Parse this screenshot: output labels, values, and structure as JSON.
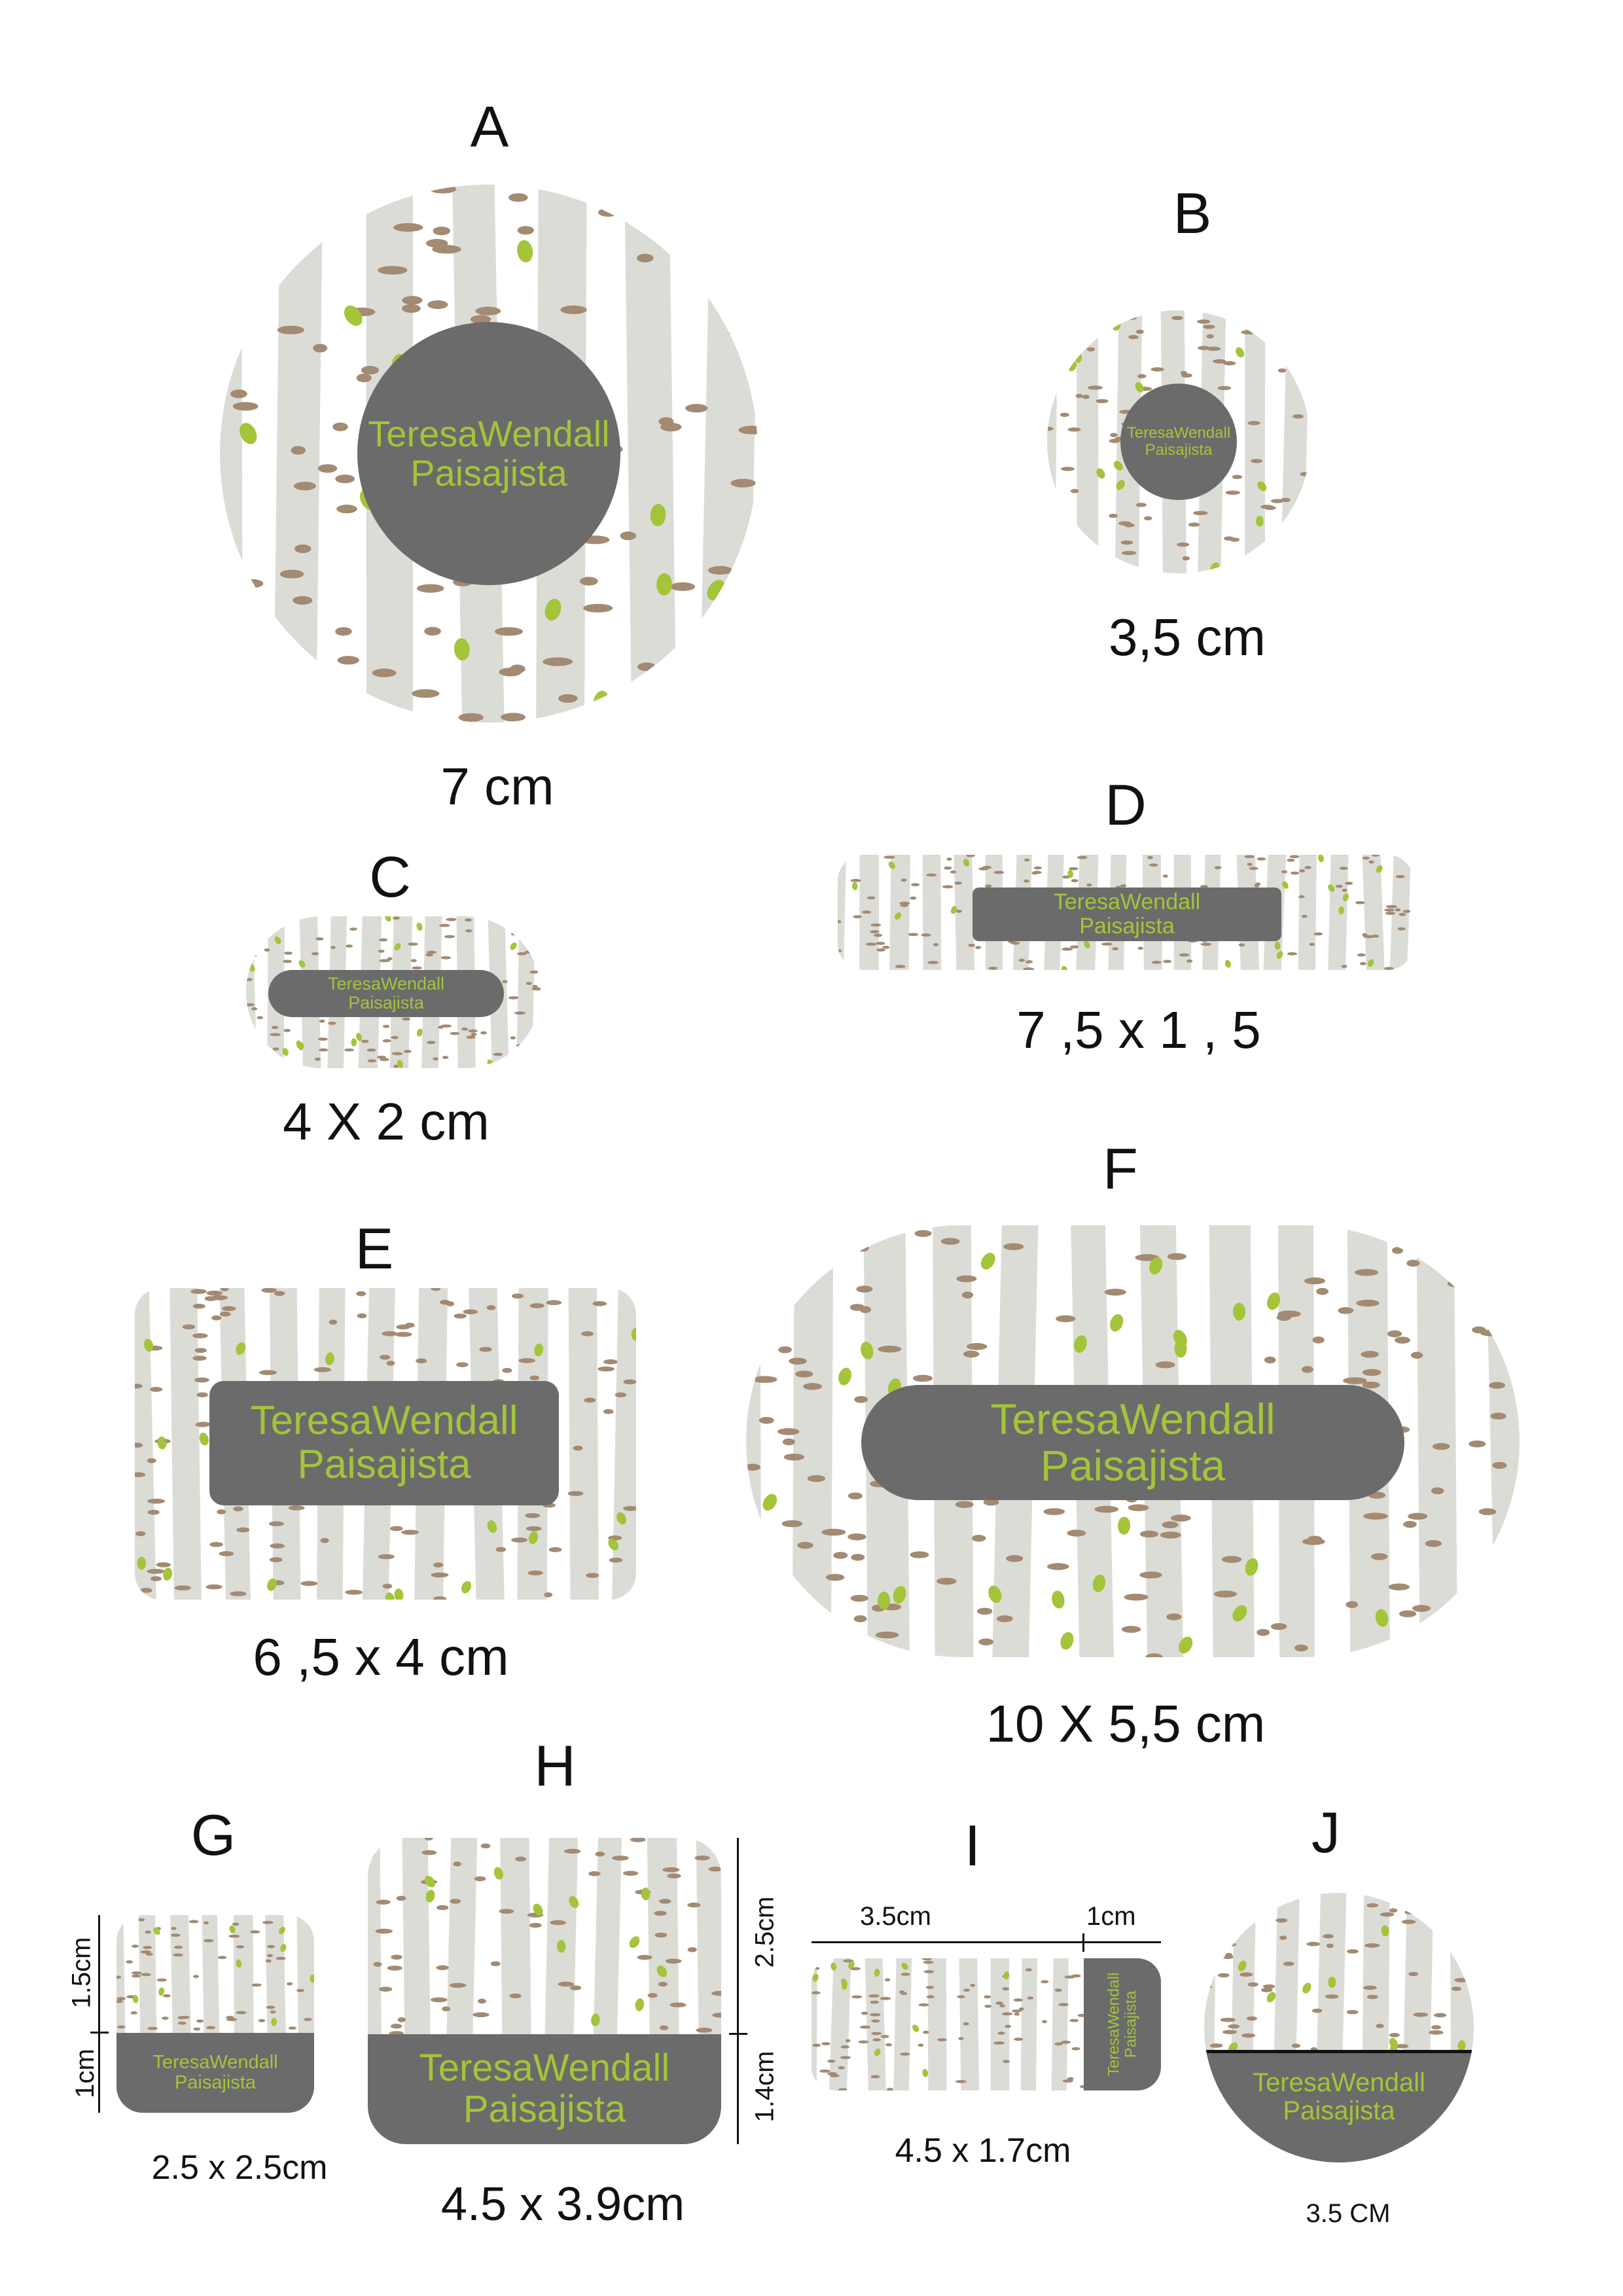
{
  "colors": {
    "trunk": "#dcdcd7",
    "mark": "#a38a72",
    "leaf": "#a4c43a",
    "label_bg": "#6b6b6b",
    "label_text": "#a4c43a",
    "background": "#ffffff"
  },
  "label_text": {
    "line1": "TeresaWendall",
    "line2": "Paisajista"
  },
  "stickers": {
    "A": {
      "letter": "A",
      "size": "7 cm",
      "shape": "circle"
    },
    "B": {
      "letter": "B",
      "size": "3,5 cm",
      "shape": "circle"
    },
    "C": {
      "letter": "C",
      "size": "4 X 2 cm",
      "shape": "rounded-rectangle"
    },
    "D": {
      "letter": "D",
      "size": "7 ,5 x 1 , 5",
      "shape": "rounded-rectangle"
    },
    "E": {
      "letter": "E",
      "size": "6 ,5 x 4 cm",
      "shape": "rounded-rectangle"
    },
    "F": {
      "letter": "F",
      "size": "10 X 5,5 cm",
      "shape": "stadium"
    },
    "G": {
      "letter": "G",
      "size": "2.5 x 2.5cm",
      "shape": "rounded-square",
      "dim_top": "1.5cm",
      "dim_bottom": "1cm"
    },
    "H": {
      "letter": "H",
      "size": "4.5 x 3.9cm",
      "shape": "rounded-rectangle",
      "dim_top": "2.5cm",
      "dim_bottom": "1.4cm"
    },
    "I": {
      "letter": "I",
      "size": "4.5 x 1.7cm",
      "shape": "rounded-rectangle",
      "dim_left": "3.5cm",
      "dim_right": "1cm"
    },
    "J": {
      "letter": "J",
      "size": "3.5 CM",
      "shape": "circle"
    }
  }
}
